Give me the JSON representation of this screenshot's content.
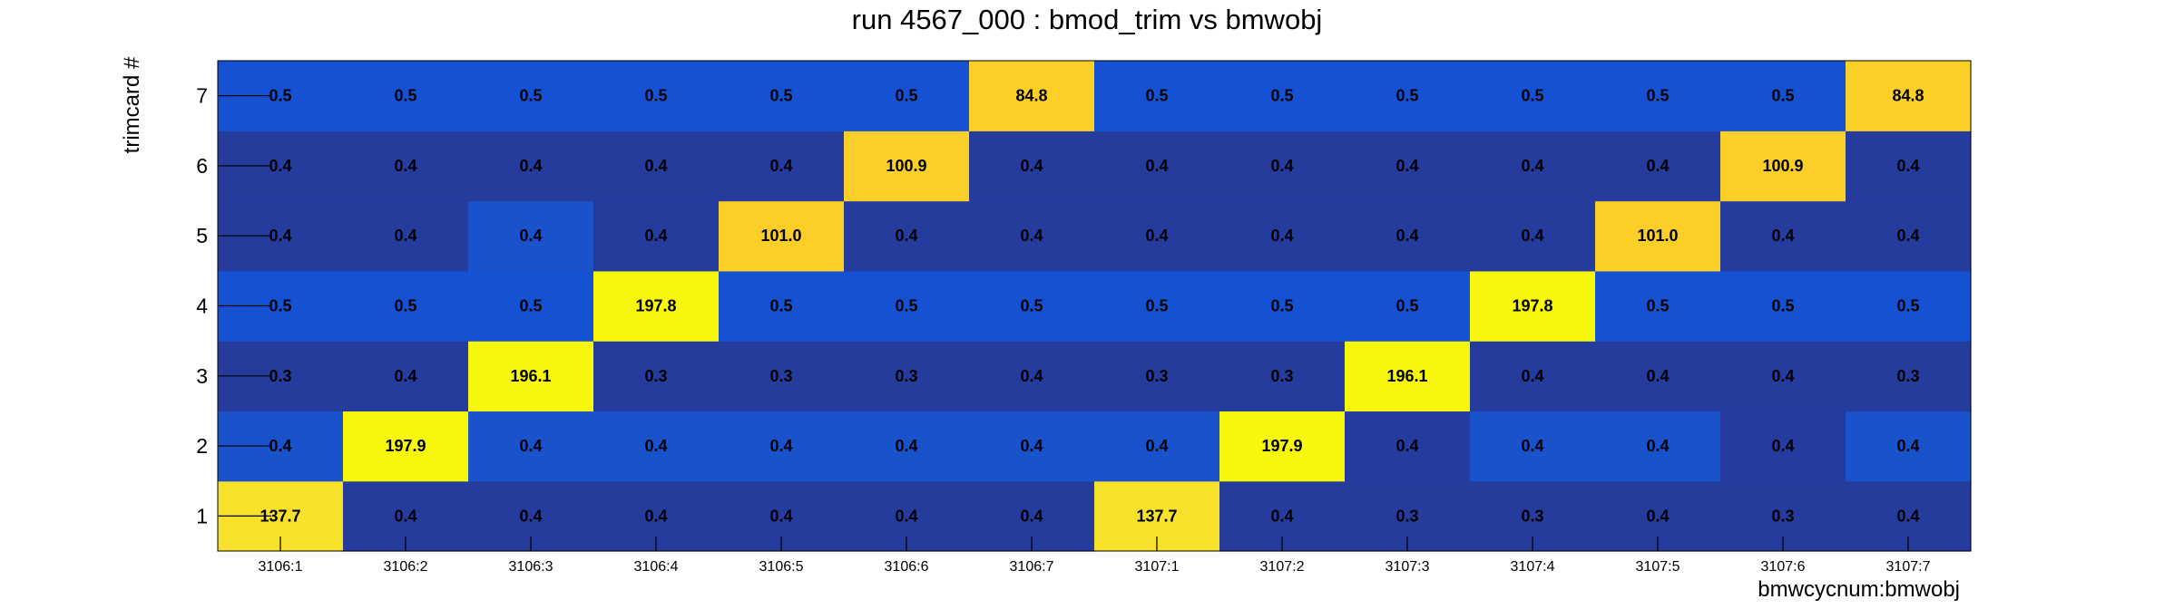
{
  "chart_data": {
    "type": "heatmap",
    "title": "run 4567_000 : bmod_trim vs bmwobj",
    "xlabel": "bmwcycnum:bmwobj",
    "ylabel": "trimcard #",
    "x_categories": [
      "3106:1",
      "3106:2",
      "3106:3",
      "3106:4",
      "3106:5",
      "3106:6",
      "3106:7",
      "3107:1",
      "3107:2",
      "3107:3",
      "3107:4",
      "3107:5",
      "3107:6",
      "3107:7"
    ],
    "y_categories": [
      "1",
      "2",
      "3",
      "4",
      "5",
      "6",
      "7"
    ],
    "values": [
      [
        "137.7",
        "0.4",
        "0.4",
        "0.4",
        "0.4",
        "0.4",
        "0.4",
        "137.7",
        "0.4",
        "0.3",
        "0.3",
        "0.4",
        "0.3",
        "0.4"
      ],
      [
        "0.4",
        "197.9",
        "0.4",
        "0.4",
        "0.4",
        "0.4",
        "0.4",
        "0.4",
        "197.9",
        "0.4",
        "0.4",
        "0.4",
        "0.4",
        "0.4"
      ],
      [
        "0.3",
        "0.4",
        "196.1",
        "0.3",
        "0.3",
        "0.3",
        "0.4",
        "0.3",
        "0.3",
        "196.1",
        "0.4",
        "0.4",
        "0.4",
        "0.3"
      ],
      [
        "0.5",
        "0.5",
        "0.5",
        "197.8",
        "0.5",
        "0.5",
        "0.5",
        "0.5",
        "0.5",
        "0.5",
        "197.8",
        "0.5",
        "0.5",
        "0.5"
      ],
      [
        "0.4",
        "0.4",
        "0.4",
        "0.4",
        "101.0",
        "0.4",
        "0.4",
        "0.4",
        "0.4",
        "0.4",
        "0.4",
        "101.0",
        "0.4",
        "0.4"
      ],
      [
        "0.4",
        "0.4",
        "0.4",
        "0.4",
        "0.4",
        "100.9",
        "0.4",
        "0.4",
        "0.4",
        "0.4",
        "0.4",
        "0.4",
        "100.9",
        "0.4"
      ],
      [
        "0.5",
        "0.5",
        "0.5",
        "0.5",
        "0.5",
        "0.5",
        "84.8",
        "0.5",
        "0.5",
        "0.5",
        "0.5",
        "0.5",
        "0.5",
        "84.8"
      ]
    ],
    "colors": {
      "low_0_3": "#253c9d",
      "low_0_4": "#263b9f",
      "low_0_4_alt": "#1a52cc",
      "low_0_5": "#1552d3",
      "high_84": "#fccf26",
      "high_100": "#fbcf27",
      "high_137": "#f8e12a",
      "high_196": "#f7f70d"
    }
  }
}
